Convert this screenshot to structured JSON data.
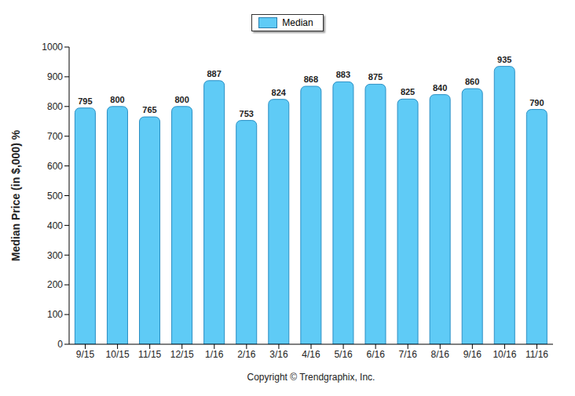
{
  "chart_data": {
    "type": "bar",
    "y_label": "Median Price (in $,000) %",
    "x_label": "Copyright © Trendgraphix, Inc.",
    "categories": [
      "9/15",
      "10/15",
      "11/15",
      "12/15",
      "1/16",
      "2/16",
      "3/16",
      "4/16",
      "5/16",
      "6/16",
      "7/16",
      "8/16",
      "9/16",
      "10/16",
      "11/16"
    ],
    "series": [
      {
        "name": "Median",
        "color": "#5fcbf6",
        "values": [
          795,
          800,
          765,
          800,
          887,
          753,
          824,
          868,
          883,
          875,
          825,
          840,
          860,
          935,
          790
        ]
      }
    ],
    "ylim": [
      0,
      1000
    ],
    "yticks": [
      0,
      100,
      200,
      300,
      400,
      500,
      600,
      700,
      800,
      900,
      1000
    ],
    "grid": false,
    "legend": "top",
    "data_labels": true
  }
}
